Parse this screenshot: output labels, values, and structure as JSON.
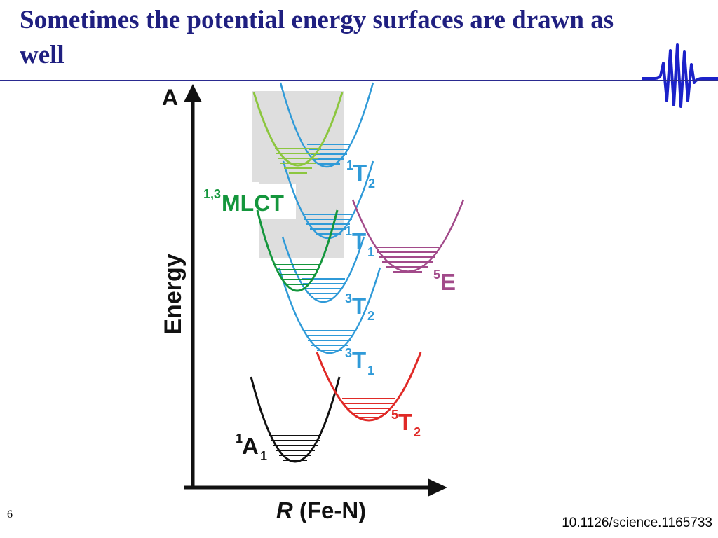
{
  "slide": {
    "title": "Sometimes the potential energy surfaces are drawn as well",
    "page_number": "6",
    "doi": "10.1126/science.1165733"
  },
  "logo": {
    "icon": "waveform-icon",
    "color": "#1c22c9"
  },
  "diagram": {
    "panel_label": "A",
    "y_axis_label": "Energy",
    "x_axis_label_italic": "R",
    "x_axis_label_rest": " (Fe-N)",
    "states": [
      {
        "id": "1A1",
        "pre": "1",
        "main": "A",
        "sub": "1",
        "color": "#111111"
      },
      {
        "id": "5T2",
        "pre": "5",
        "main": "T",
        "sub": "2",
        "color": "#e02a27"
      },
      {
        "id": "3T1",
        "pre": "3",
        "main": "T",
        "sub": "1",
        "color": "#2f9ad8"
      },
      {
        "id": "3T2",
        "pre": "3",
        "main": "T",
        "sub": "2",
        "color": "#2f9ad8"
      },
      {
        "id": "1T1",
        "pre": "1",
        "main": "T",
        "sub": "1",
        "color": "#2f9ad8"
      },
      {
        "id": "1T2",
        "pre": "1",
        "main": "T",
        "sub": "2",
        "color": "#2f9ad8"
      },
      {
        "id": "5E",
        "pre": "5",
        "main": "E",
        "sub": "",
        "color": "#a24a8a"
      },
      {
        "id": "MLCT",
        "pre": "1,3",
        "main": "MLCT",
        "sub": "",
        "color": "#14963c"
      }
    ],
    "colors": {
      "axis": "#111111",
      "mlct_green": "#14963c",
      "mlct_light_green": "#8cc63f",
      "triplet_blue": "#2f9ad8",
      "quintet_red": "#e02a27",
      "quintet_e_purple": "#a24a8a",
      "shading": "#dedede"
    }
  }
}
